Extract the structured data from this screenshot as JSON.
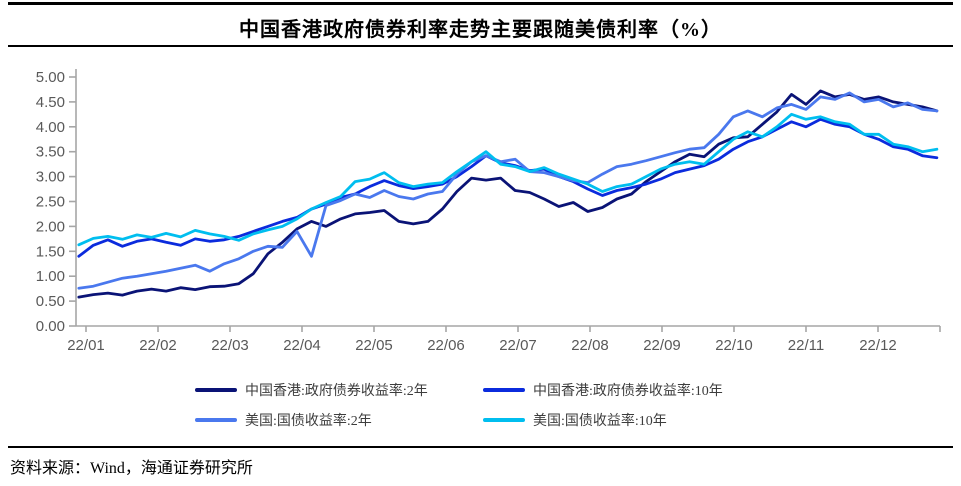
{
  "chart_data": {
    "type": "line",
    "title": "中国香港政府债券利率走势主要跟随美债利率（%）",
    "source_note": "资料来源：Wind，海通证券研究所",
    "grid": false,
    "legend_position": "bottom",
    "y_axis": {
      "min": 0,
      "max": 5,
      "ticks": [
        "0.00",
        "0.50",
        "1.00",
        "1.50",
        "2.00",
        "2.50",
        "3.00",
        "3.50",
        "4.00",
        "4.50",
        "5.00"
      ]
    },
    "x_axis": {
      "ticks": [
        "22/01",
        "22/02",
        "22/03",
        "22/04",
        "22/05",
        "22/06",
        "22/07",
        "22/08",
        "22/09",
        "22/10",
        "22/11",
        "22/12"
      ]
    },
    "x_start": 0.9,
    "x_step": 0.202,
    "colors": {
      "axis": "#A6A6A6",
      "tick_label": "#595959",
      "legend_text": "#3D3D3D",
      "rule": "#000000"
    },
    "series": [
      {
        "name": "中国香港:政府债券收益率:2年",
        "color": "#0A1376",
        "values": [
          0.58,
          0.63,
          0.66,
          0.62,
          0.7,
          0.74,
          0.7,
          0.77,
          0.73,
          0.79,
          0.8,
          0.85,
          1.05,
          1.45,
          1.68,
          1.95,
          2.1,
          2.0,
          2.15,
          2.25,
          2.28,
          2.32,
          2.1,
          2.05,
          2.1,
          2.35,
          2.7,
          2.97,
          2.93,
          2.97,
          2.72,
          2.68,
          2.55,
          2.4,
          2.48,
          2.3,
          2.38,
          2.55,
          2.65,
          2.9,
          3.1,
          3.3,
          3.45,
          3.4,
          3.65,
          3.78,
          3.8,
          4.05,
          4.3,
          4.65,
          4.45,
          4.72,
          4.6,
          4.65,
          4.55,
          4.6,
          4.5,
          4.45,
          4.4,
          4.32
        ]
      },
      {
        "name": "中国香港:政府债券收益率:10年",
        "color": "#0B2BDD",
        "values": [
          1.4,
          1.62,
          1.73,
          1.6,
          1.7,
          1.75,
          1.68,
          1.62,
          1.75,
          1.7,
          1.73,
          1.8,
          1.9,
          2.0,
          2.1,
          2.18,
          2.35,
          2.45,
          2.58,
          2.65,
          2.8,
          2.92,
          2.82,
          2.76,
          2.8,
          2.85,
          3.0,
          3.2,
          3.42,
          3.28,
          3.22,
          3.12,
          3.15,
          3.0,
          2.9,
          2.75,
          2.62,
          2.72,
          2.78,
          2.85,
          2.95,
          3.08,
          3.15,
          3.22,
          3.35,
          3.55,
          3.7,
          3.8,
          3.95,
          4.1,
          4.0,
          4.15,
          4.05,
          4.0,
          3.85,
          3.75,
          3.6,
          3.55,
          3.42,
          3.38
        ]
      },
      {
        "name": "美国:国债收益率:2年",
        "color": "#4A78EE",
        "values": [
          0.76,
          0.8,
          0.88,
          0.96,
          1.0,
          1.05,
          1.1,
          1.16,
          1.22,
          1.1,
          1.25,
          1.35,
          1.5,
          1.6,
          1.58,
          1.9,
          1.4,
          2.42,
          2.52,
          2.65,
          2.58,
          2.72,
          2.6,
          2.55,
          2.65,
          2.7,
          3.05,
          3.3,
          3.42,
          3.3,
          3.35,
          3.1,
          3.08,
          3.0,
          2.92,
          2.88,
          3.05,
          3.2,
          3.25,
          3.32,
          3.4,
          3.48,
          3.55,
          3.58,
          3.85,
          4.2,
          4.32,
          4.2,
          4.38,
          4.45,
          4.35,
          4.6,
          4.55,
          4.68,
          4.5,
          4.55,
          4.4,
          4.48,
          4.35,
          4.32
        ]
      },
      {
        "name": "美国:国债收益率:10年",
        "color": "#00BEEF",
        "values": [
          1.63,
          1.76,
          1.8,
          1.74,
          1.83,
          1.78,
          1.86,
          1.79,
          1.92,
          1.85,
          1.8,
          1.72,
          1.85,
          1.93,
          2.0,
          2.15,
          2.35,
          2.48,
          2.6,
          2.9,
          2.95,
          3.08,
          2.88,
          2.8,
          2.85,
          2.88,
          3.1,
          3.3,
          3.5,
          3.25,
          3.2,
          3.1,
          3.18,
          3.05,
          2.95,
          2.85,
          2.7,
          2.8,
          2.85,
          3.0,
          3.15,
          3.25,
          3.3,
          3.25,
          3.5,
          3.75,
          3.9,
          3.8,
          4.0,
          4.25,
          4.15,
          4.2,
          4.1,
          4.05,
          3.85,
          3.85,
          3.65,
          3.6,
          3.5,
          3.55
        ]
      }
    ]
  }
}
